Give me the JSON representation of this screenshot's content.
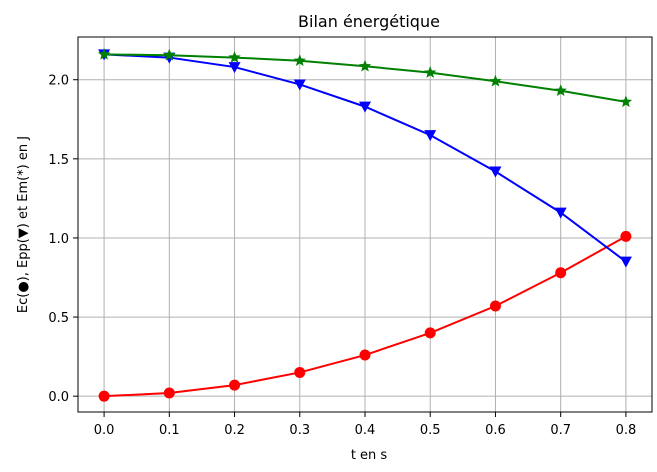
{
  "chart_data": {
    "type": "line",
    "title": "Bilan énergétique",
    "xlabel": "t en s",
    "ylabel": "Ec(●), Epp(▼) et Em(*) en J",
    "xlim": [
      -0.04,
      0.84
    ],
    "ylim": [
      -0.1,
      2.27
    ],
    "x": [
      0.0,
      0.1,
      0.2,
      0.3,
      0.4,
      0.5,
      0.6,
      0.7,
      0.8
    ],
    "x_ticks": [
      0.0,
      0.1,
      0.2,
      0.3,
      0.4,
      0.5,
      0.6,
      0.7,
      0.8
    ],
    "x_tick_labels": [
      "0.0",
      "0.1",
      "0.2",
      "0.3",
      "0.4",
      "0.5",
      "0.6",
      "0.7",
      "0.8"
    ],
    "y_ticks": [
      0.0,
      0.5,
      1.0,
      1.5,
      2.0
    ],
    "y_tick_labels": [
      "0.0",
      "0.5",
      "1.0",
      "1.5",
      "2.0"
    ],
    "grid": true,
    "series": [
      {
        "color": "#ff0000",
        "marker": "circle",
        "values": [
          0.0,
          0.02,
          0.07,
          0.15,
          0.26,
          0.4,
          0.57,
          0.78,
          1.01
        ]
      },
      {
        "color": "#0000ff",
        "marker": "triangle-down",
        "values": [
          2.16,
          2.14,
          2.08,
          1.97,
          1.83,
          1.65,
          1.42,
          1.16,
          0.85
        ]
      },
      {
        "color": "#008000",
        "marker": "star",
        "values": [
          2.16,
          2.155,
          2.14,
          2.12,
          2.085,
          2.045,
          1.99,
          1.93,
          1.86
        ]
      }
    ]
  }
}
